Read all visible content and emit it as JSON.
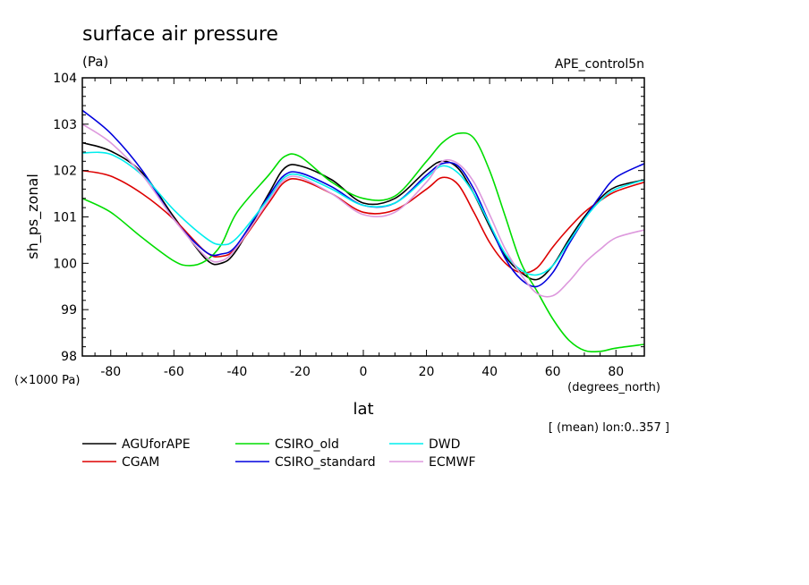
{
  "chart_data": {
    "type": "line",
    "title": "surface air pressure",
    "units": "(Pa)",
    "run_label": "APE_control5n",
    "xlabel": "lat",
    "x_unit_label": "(degrees_north)",
    "ylabel": "sh_ps_zonal",
    "y_scale_label": "(×1000 Pa)",
    "mean_note": "[ (mean) lon:0..357 ]",
    "xlim": [
      -89,
      89
    ],
    "ylim": [
      98,
      104
    ],
    "x_ticks": [
      -80,
      -60,
      -40,
      -20,
      0,
      20,
      40,
      60,
      80
    ],
    "y_ticks": [
      98,
      99,
      100,
      101,
      102,
      103,
      104
    ],
    "series": [
      {
        "name": "AGUforAPE",
        "color": "#000000",
        "points": [
          [
            -89,
            102.6
          ],
          [
            -80,
            102.42
          ],
          [
            -70,
            101.95
          ],
          [
            -60,
            101.0
          ],
          [
            -50,
            100.1
          ],
          [
            -45,
            100.0
          ],
          [
            -40,
            100.3
          ],
          [
            -30,
            101.5
          ],
          [
            -25,
            102.05
          ],
          [
            -20,
            102.1
          ],
          [
            -10,
            101.8
          ],
          [
            0,
            101.3
          ],
          [
            10,
            101.4
          ],
          [
            20,
            102.0
          ],
          [
            25,
            102.2
          ],
          [
            30,
            102.05
          ],
          [
            35,
            101.5
          ],
          [
            40,
            100.8
          ],
          [
            45,
            100.15
          ],
          [
            50,
            99.8
          ],
          [
            55,
            99.65
          ],
          [
            60,
            99.95
          ],
          [
            65,
            100.5
          ],
          [
            70,
            101.0
          ],
          [
            75,
            101.4
          ],
          [
            80,
            101.65
          ],
          [
            89,
            101.8
          ]
        ]
      },
      {
        "name": "CGAM",
        "color": "#dd0000",
        "points": [
          [
            -89,
            102.0
          ],
          [
            -80,
            101.88
          ],
          [
            -70,
            101.5
          ],
          [
            -60,
            100.95
          ],
          [
            -50,
            100.25
          ],
          [
            -45,
            100.15
          ],
          [
            -40,
            100.35
          ],
          [
            -30,
            101.3
          ],
          [
            -25,
            101.75
          ],
          [
            -20,
            101.8
          ],
          [
            -10,
            101.5
          ],
          [
            0,
            101.1
          ],
          [
            10,
            101.15
          ],
          [
            20,
            101.6
          ],
          [
            25,
            101.85
          ],
          [
            30,
            101.7
          ],
          [
            35,
            101.1
          ],
          [
            40,
            100.45
          ],
          [
            45,
            100.0
          ],
          [
            50,
            99.8
          ],
          [
            55,
            99.9
          ],
          [
            60,
            100.35
          ],
          [
            65,
            100.75
          ],
          [
            70,
            101.1
          ],
          [
            75,
            101.35
          ],
          [
            80,
            101.55
          ],
          [
            89,
            101.75
          ]
        ]
      },
      {
        "name": "CSIRO_old",
        "color": "#00dd00",
        "points": [
          [
            -89,
            101.4
          ],
          [
            -80,
            101.1
          ],
          [
            -70,
            100.55
          ],
          [
            -60,
            100.05
          ],
          [
            -55,
            99.95
          ],
          [
            -50,
            100.05
          ],
          [
            -45,
            100.4
          ],
          [
            -40,
            101.1
          ],
          [
            -30,
            101.9
          ],
          [
            -25,
            102.3
          ],
          [
            -20,
            102.3
          ],
          [
            -10,
            101.75
          ],
          [
            0,
            101.4
          ],
          [
            10,
            101.45
          ],
          [
            20,
            102.2
          ],
          [
            25,
            102.6
          ],
          [
            30,
            102.8
          ],
          [
            35,
            102.7
          ],
          [
            40,
            102.0
          ],
          [
            45,
            101.0
          ],
          [
            50,
            100.0
          ],
          [
            55,
            99.4
          ],
          [
            60,
            98.8
          ],
          [
            65,
            98.35
          ],
          [
            70,
            98.12
          ],
          [
            75,
            98.1
          ],
          [
            80,
            98.17
          ],
          [
            89,
            98.25
          ]
        ]
      },
      {
        "name": "CSIRO_standard",
        "color": "#0000dd",
        "points": [
          [
            -89,
            103.3
          ],
          [
            -80,
            102.8
          ],
          [
            -70,
            102.0
          ],
          [
            -60,
            100.95
          ],
          [
            -50,
            100.25
          ],
          [
            -45,
            100.2
          ],
          [
            -40,
            100.4
          ],
          [
            -30,
            101.45
          ],
          [
            -25,
            101.9
          ],
          [
            -20,
            101.95
          ],
          [
            -10,
            101.65
          ],
          [
            0,
            101.25
          ],
          [
            10,
            101.3
          ],
          [
            20,
            101.9
          ],
          [
            25,
            102.15
          ],
          [
            30,
            102.1
          ],
          [
            35,
            101.6
          ],
          [
            40,
            100.85
          ],
          [
            45,
            100.1
          ],
          [
            50,
            99.65
          ],
          [
            55,
            99.5
          ],
          [
            60,
            99.8
          ],
          [
            65,
            100.4
          ],
          [
            70,
            100.95
          ],
          [
            75,
            101.45
          ],
          [
            80,
            101.85
          ],
          [
            89,
            102.15
          ]
        ]
      },
      {
        "name": "DWD",
        "color": "#00eeee",
        "points": [
          [
            -89,
            102.38
          ],
          [
            -80,
            102.35
          ],
          [
            -70,
            101.9
          ],
          [
            -60,
            101.15
          ],
          [
            -50,
            100.55
          ],
          [
            -45,
            100.4
          ],
          [
            -40,
            100.55
          ],
          [
            -30,
            101.4
          ],
          [
            -25,
            101.85
          ],
          [
            -20,
            101.9
          ],
          [
            -10,
            101.6
          ],
          [
            0,
            101.25
          ],
          [
            10,
            101.3
          ],
          [
            20,
            101.85
          ],
          [
            25,
            102.1
          ],
          [
            30,
            101.95
          ],
          [
            35,
            101.5
          ],
          [
            40,
            100.85
          ],
          [
            45,
            100.2
          ],
          [
            50,
            99.85
          ],
          [
            55,
            99.75
          ],
          [
            60,
            99.95
          ],
          [
            65,
            100.45
          ],
          [
            70,
            100.95
          ],
          [
            75,
            101.35
          ],
          [
            80,
            101.6
          ],
          [
            89,
            101.8
          ]
        ]
      },
      {
        "name": "ECMWF",
        "color": "#dd99dd",
        "points": [
          [
            -89,
            103.0
          ],
          [
            -80,
            102.6
          ],
          [
            -70,
            101.9
          ],
          [
            -60,
            100.95
          ],
          [
            -50,
            100.15
          ],
          [
            -45,
            100.05
          ],
          [
            -40,
            100.35
          ],
          [
            -30,
            101.35
          ],
          [
            -25,
            101.8
          ],
          [
            -20,
            101.85
          ],
          [
            -10,
            101.5
          ],
          [
            0,
            101.05
          ],
          [
            10,
            101.1
          ],
          [
            20,
            101.75
          ],
          [
            25,
            102.2
          ],
          [
            30,
            102.15
          ],
          [
            35,
            101.75
          ],
          [
            40,
            101.05
          ],
          [
            45,
            100.3
          ],
          [
            50,
            99.75
          ],
          [
            55,
            99.35
          ],
          [
            60,
            99.3
          ],
          [
            65,
            99.6
          ],
          [
            70,
            100.0
          ],
          [
            75,
            100.3
          ],
          [
            80,
            100.55
          ],
          [
            89,
            100.72
          ]
        ]
      }
    ]
  }
}
